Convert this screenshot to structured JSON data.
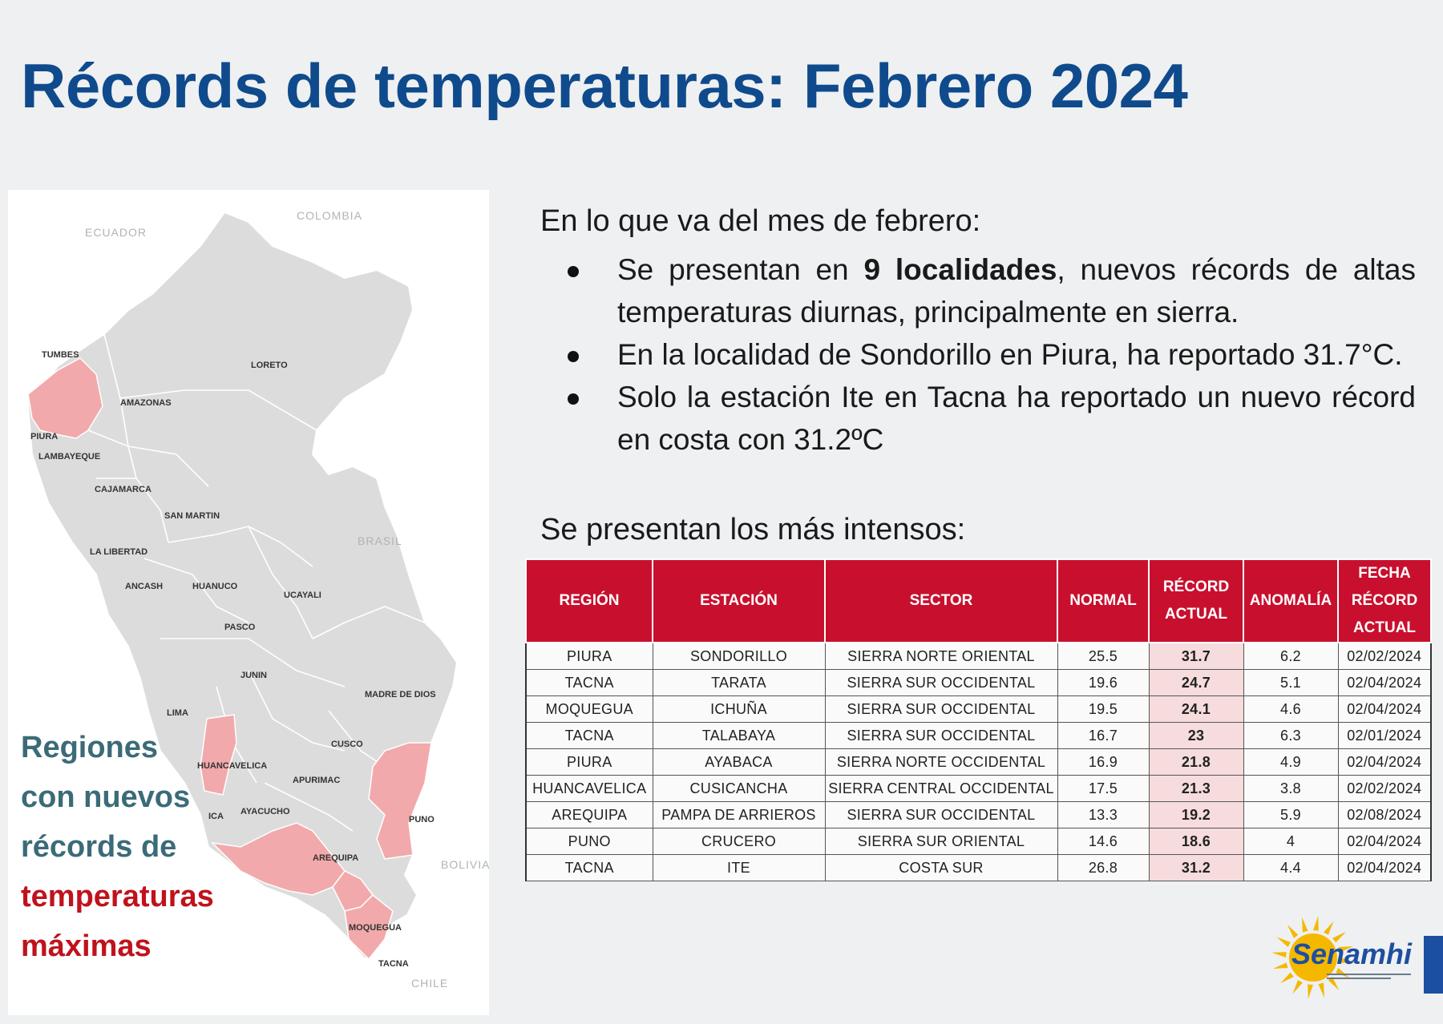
{
  "title": "Récords de temperaturas: Febrero 2024",
  "map": {
    "countries": [
      "ECUADOR",
      "COLOMBIA",
      "BRASIL",
      "BOLIVIA",
      "CHILE"
    ],
    "regions": {
      "tumbes": "TUMBES",
      "loreto": "LORETO",
      "amazonas": "AMAZONAS",
      "piura": "PIURA",
      "lambayeque": "LAMBAYEQUE",
      "cajamarca": "CAJAMARCA",
      "san_martin": "SAN MARTIN",
      "la_libertad": "LA LIBERTAD",
      "ancash": "ANCASH",
      "huanuco": "HUANUCO",
      "ucayali": "UCAYALI",
      "pasco": "PASCO",
      "junin": "JUNIN",
      "madre_de_dios": "MADRE DE DIOS",
      "lima": "LIMA",
      "cusco": "CUSCO",
      "huancavelica": "HUANCAVELICA",
      "apurimac": "APURIMAC",
      "ica": "ICA",
      "ayacucho": "AYACUCHO",
      "puno": "PUNO",
      "arequipa": "AREQUIPA",
      "moquegua": "MOQUEGUA",
      "tacna": "TACNA"
    },
    "highlight_color": "#f2a9ab",
    "base_color": "#dcdcdc",
    "legend": {
      "line1": "Regiones",
      "line2": "con nuevos",
      "line3": "récords de",
      "line4": "temperaturas",
      "line5": "máximas"
    }
  },
  "intro": "En lo que va del mes de febrero:",
  "bullets": {
    "b1_pre": "Se presentan en ",
    "b1_bold": "9 localidades",
    "b1_post": ", nuevos récords de altas temperaturas diurnas, principalmente en sierra.",
    "b2": "En la localidad de Sondorillo en Piura, ha reportado 31.7°C.",
    "b3": "Solo la estación Ite en Tacna ha reportado un nuevo récord en costa con 31.2ºC"
  },
  "subheading": "Se presentan los más intensos:",
  "table": {
    "header_color": "#c8102e",
    "headers": {
      "region": "REGIÓN",
      "estacion": "ESTACIÓN",
      "sector": "SECTOR",
      "normal": "NORMAL",
      "record_l1": "RÉCORD",
      "record_l2": "ACTUAL",
      "anomalia": "ANOMALÍA",
      "fecha_l1": "FECHA",
      "fecha_l2": "RÉCORD",
      "fecha_l3": "ACTUAL"
    },
    "rows": [
      {
        "region": "PIURA",
        "estacion": "SONDORILLO",
        "sector": "SIERRA NORTE ORIENTAL",
        "normal": "25.5",
        "record": "31.7",
        "anomalia": "6.2",
        "fecha": "02/02/2024"
      },
      {
        "region": "TACNA",
        "estacion": "TARATA",
        "sector": "SIERRA SUR OCCIDENTAL",
        "normal": "19.6",
        "record": "24.7",
        "anomalia": "5.1",
        "fecha": "02/04/2024"
      },
      {
        "region": "MOQUEGUA",
        "estacion": "ICHUÑA",
        "sector": "SIERRA SUR OCCIDENTAL",
        "normal": "19.5",
        "record": "24.1",
        "anomalia": "4.6",
        "fecha": "02/04/2024"
      },
      {
        "region": "TACNA",
        "estacion": "TALABAYA",
        "sector": "SIERRA SUR OCCIDENTAL",
        "normal": "16.7",
        "record": "23",
        "anomalia": "6.3",
        "fecha": "02/01/2024"
      },
      {
        "region": "PIURA",
        "estacion": "AYABACA",
        "sector": "SIERRA NORTE OCCIDENTAL",
        "normal": "16.9",
        "record": "21.8",
        "anomalia": "4.9",
        "fecha": "02/04/2024"
      },
      {
        "region": "HUANCAVELICA",
        "estacion": "CUSICANCHA",
        "sector": "SIERRA CENTRAL OCCIDENTAL",
        "normal": "17.5",
        "record": "21.3",
        "anomalia": "3.8",
        "fecha": "02/02/2024"
      },
      {
        "region": "AREQUIPA",
        "estacion": "PAMPA DE ARRIEROS",
        "sector": "SIERRA SUR OCCIDENTAL",
        "normal": "13.3",
        "record": "19.2",
        "anomalia": "5.9",
        "fecha": "02/08/2024"
      },
      {
        "region": "PUNO",
        "estacion": "CRUCERO",
        "sector": "SIERRA SUR ORIENTAL",
        "normal": "14.6",
        "record": "18.6",
        "anomalia": "4",
        "fecha": "02/04/2024"
      },
      {
        "region": "TACNA",
        "estacion": "ITE",
        "sector": "COSTA SUR",
        "normal": "26.8",
        "record": "31.2",
        "anomalia": "4.4",
        "fecha": "02/04/2024"
      }
    ]
  },
  "logo": {
    "text": "Senamhi",
    "sun_color": "#f5b800",
    "brand_color": "#1d4fa0"
  }
}
